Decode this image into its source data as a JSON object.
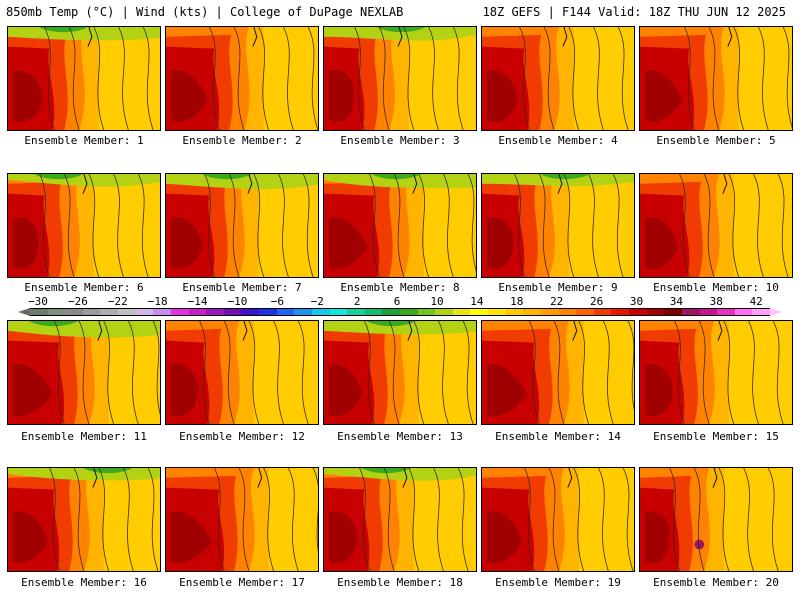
{
  "header": {
    "left_title": "850mb Temp (°C) | Wind (kts) | College of DuPage NEXLAB",
    "right_title": "18Z GEFS | F144 Valid: 18Z THU JUN 12 2025"
  },
  "members": [
    {
      "label": "Ensemble Member: 1"
    },
    {
      "label": "Ensemble Member: 2"
    },
    {
      "label": "Ensemble Member: 3"
    },
    {
      "label": "Ensemble Member: 4"
    },
    {
      "label": "Ensemble Member: 5"
    },
    {
      "label": "Ensemble Member: 6"
    },
    {
      "label": "Ensemble Member: 7"
    },
    {
      "label": "Ensemble Member: 8"
    },
    {
      "label": "Ensemble Member: 9"
    },
    {
      "label": "Ensemble Member: 10"
    },
    {
      "label": "Ensemble Member: 11"
    },
    {
      "label": "Ensemble Member: 12"
    },
    {
      "label": "Ensemble Member: 13"
    },
    {
      "label": "Ensemble Member: 14"
    },
    {
      "label": "Ensemble Member: 15"
    },
    {
      "label": "Ensemble Member: 16"
    },
    {
      "label": "Ensemble Member: 17"
    },
    {
      "label": "Ensemble Member: 18"
    },
    {
      "label": "Ensemble Member: 19"
    },
    {
      "label": "Ensemble Member: 20"
    }
  ],
  "colorbar": {
    "tick_labels": [
      "−30",
      "−26",
      "−22",
      "−18",
      "−14",
      "−10",
      "−6",
      "−2",
      "2",
      "6",
      "10",
      "14",
      "18",
      "22",
      "26",
      "30",
      "34",
      "38",
      "42"
    ],
    "colors": [
      "#6e7e6e",
      "#7f8f7f",
      "#8a8a8a",
      "#9b9b9b",
      "#adadad",
      "#bfbfbf",
      "#d2b4e6",
      "#c88cf0",
      "#e632e6",
      "#c81ec8",
      "#9b14be",
      "#6e0fb4",
      "#3c14c8",
      "#1e32e6",
      "#1e64f5",
      "#1e96f0",
      "#14c8f0",
      "#14e6dc",
      "#14d2a0",
      "#14be6e",
      "#1ea03c",
      "#3caa1e",
      "#78c31e",
      "#b4d214",
      "#e6e614",
      "#ffff00",
      "#ffe600",
      "#ffcc00",
      "#ffb400",
      "#ff9b00",
      "#ff8200",
      "#ff6400",
      "#f03c00",
      "#e61400",
      "#c80000",
      "#a00000",
      "#7d0000",
      "#a01464",
      "#c8148c",
      "#e632be",
      "#ff6ef0",
      "#ffa0ff"
    ]
  }
}
